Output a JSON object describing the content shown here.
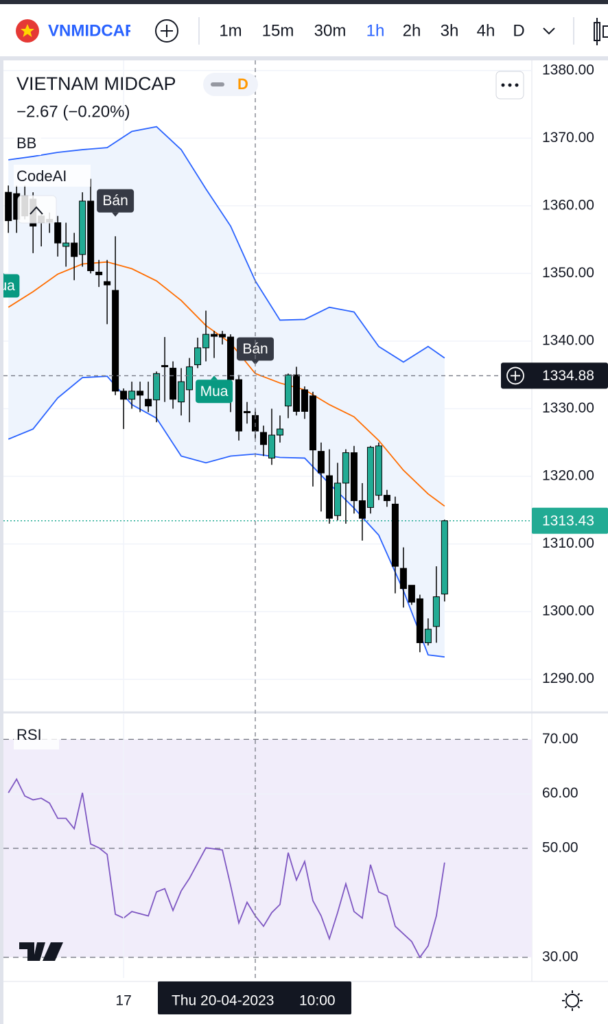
{
  "toolbar": {
    "symbol": "VNMIDCAP",
    "intervals": [
      "1m",
      "15m",
      "30m",
      "1h",
      "2h",
      "3h",
      "4h",
      "D"
    ],
    "active_interval": 3
  },
  "chart_data": [
    {
      "type": "candlestick",
      "title": "VIETNAM MIDCAP",
      "interval": "D",
      "change": "−2.67 (−0.20%)",
      "indicators": [
        "BB",
        "CodeAI"
      ],
      "x": [
        0,
        1,
        2,
        3,
        4,
        5,
        6,
        7,
        8,
        9,
        10,
        11,
        12,
        13,
        14,
        15,
        16,
        17,
        18,
        19,
        20,
        21,
        22,
        23,
        24,
        25,
        26,
        27,
        28,
        29,
        30,
        31,
        32,
        33,
        34,
        35,
        36,
        37,
        38,
        39,
        40,
        41,
        42,
        43,
        44,
        45,
        46,
        47,
        48,
        49,
        50,
        51,
        52,
        53
      ],
      "open": [
        1362,
        1361.8,
        1361.5,
        1361,
        1358.5,
        1358,
        1357.5,
        1354,
        1354.5,
        1352.8,
        1360.7,
        1350.2,
        1348.8,
        1347.5,
        1332.6,
        1331.4,
        1332.6,
        1331.4,
        1331.3,
        1336.4,
        1336,
        1331,
        1332.8,
        1336.5,
        1339,
        1341,
        1341,
        1340.6,
        1334.3,
        1329.6,
        1329,
        1326.5,
        1322.7,
        1326.1,
        1330.4,
        1335,
        1332.8,
        1331.9,
        1323.7,
        1320.1,
        1314.2,
        1319,
        1323.5,
        1316.4,
        1315.4,
        1317.2,
        1317.2,
        1315.9,
        1306.4,
        1303.9,
        1301.9,
        1295.4,
        1297.8,
        1302.6
      ],
      "high": [
        1363,
        1363,
        1363,
        1362,
        1359,
        1359,
        1358.5,
        1357.5,
        1356,
        1362,
        1364,
        1352,
        1352,
        1355.5,
        1333,
        1334,
        1334,
        1334,
        1335.5,
        1340.6,
        1337,
        1336,
        1337.5,
        1340.5,
        1344.5,
        1341.5,
        1341.5,
        1341,
        1335,
        1331,
        1330,
        1327.5,
        1330,
        1329,
        1335.2,
        1336.2,
        1333.3,
        1332.5,
        1325,
        1324,
        1322,
        1324,
        1324.5,
        1319,
        1324.5,
        1325,
        1318,
        1317,
        1309.5,
        1303.9,
        1302.5,
        1299,
        1306.7,
        1313.6
      ],
      "low": [
        1356,
        1356,
        1358,
        1353,
        1354,
        1356,
        1352.5,
        1351,
        1349,
        1351,
        1350,
        1348,
        1342.5,
        1332,
        1327,
        1330,
        1329.5,
        1329.5,
        1328,
        1331,
        1330,
        1329,
        1328,
        1336,
        1337,
        1337.5,
        1339.5,
        1329.5,
        1325.3,
        1327.8,
        1325.5,
        1323,
        1321.7,
        1325,
        1328.6,
        1329,
        1328.5,
        1318.5,
        1314.8,
        1313,
        1313.5,
        1313,
        1314.5,
        1310.5,
        1314.5,
        1316.5,
        1315.5,
        1302.7,
        1300.6,
        1301,
        1294,
        1295,
        1295.4,
        1301.5
      ],
      "close": [
        1357.8,
        1358,
        1358.5,
        1357,
        1357.5,
        1357.6,
        1354.5,
        1354.5,
        1352.5,
        1360.7,
        1350.4,
        1349.8,
        1348.3,
        1332.6,
        1331.4,
        1332.6,
        1332,
        1330.4,
        1335.2,
        1336.2,
        1331.4,
        1334,
        1336.2,
        1339,
        1341,
        1340.7,
        1340.6,
        1334.3,
        1326.7,
        1329.4,
        1326.7,
        1324.7,
        1326.1,
        1327,
        1335,
        1329.6,
        1329.6,
        1323.9,
        1320.5,
        1313.8,
        1319,
        1323.5,
        1316.4,
        1313.8,
        1324.3,
        1324.5,
        1316.4,
        1306.7,
        1303.4,
        1301.4,
        1295.4,
        1297.4,
        1302.2,
        1313.43
      ],
      "up_color": "#22ab94",
      "down_color": "#000000",
      "bands": {
        "x": [
          0,
          3,
          6,
          9,
          12,
          15,
          18,
          21,
          24,
          27,
          30,
          33,
          36,
          39,
          42,
          45,
          48,
          51,
          53
        ],
        "fill": "#eef4fd",
        "series": [
          {
            "color": "#2962ff",
            "values": [
              1366.8,
              1367.3,
              1367.9,
              1368.3,
              1368.6,
              1371.0,
              1371.7,
              1368.3,
              1362.5,
              1357.0,
              1348.9,
              1343.1,
              1343.2,
              1345.0,
              1344.3,
              1339.2,
              1336.9,
              1339.2,
              1337.5
            ]
          },
          {
            "color": "#ff6d00",
            "values": [
              1345.0,
              1347.3,
              1349.9,
              1351.4,
              1351.7,
              1350.7,
              1348.9,
              1346.0,
              1342.3,
              1339.7,
              1335.2,
              1333.8,
              1332.8,
              1330.6,
              1328.8,
              1325.3,
              1320.9,
              1317.4,
              1315.6
            ]
          },
          {
            "color": "#2962ff",
            "values": [
              1325.5,
              1327.0,
              1331.6,
              1334.6,
              1334.8,
              1330.6,
              1328.6,
              1323.0,
              1322.0,
              1323.0,
              1323.3,
              1322.8,
              1322.7,
              1318.9,
              1315.3,
              1311.3,
              1303.1,
              1293.6,
              1293.3
            ]
          }
        ]
      },
      "signals": [
        {
          "label": "Bán",
          "x": 13,
          "y": 1358.4,
          "color": "#363a45"
        },
        {
          "label": "Bán",
          "x": 30,
          "y": 1336.5,
          "color": "#363a45"
        },
        {
          "label": "Mua",
          "x": 25,
          "y": 1334.9,
          "color": "#089981"
        },
        {
          "label": "Mua",
          "x": -0.9,
          "y": 1350.5,
          "color": "#089981"
        }
      ],
      "xlim": [
        -0.6,
        63.6
      ],
      "ylim": [
        1285.2,
        1381.5
      ],
      "yticks": [
        {
          "value": 1290,
          "label": "1290.00"
        },
        {
          "value": 1300,
          "label": "1300.00"
        },
        {
          "value": 1310,
          "label": "1310.00"
        },
        {
          "value": 1320,
          "label": "1320.00"
        },
        {
          "value": 1330,
          "label": "1330.00"
        },
        {
          "value": 1340,
          "label": "1340.00"
        },
        {
          "value": 1350,
          "label": "1350.00"
        },
        {
          "value": 1360,
          "label": "1360.00"
        },
        {
          "value": 1370,
          "label": "1370.00"
        },
        {
          "value": 1380,
          "label": "1380.00"
        }
      ],
      "xticks": [
        {
          "value": 14,
          "label": "17"
        }
      ],
      "grid": true,
      "last_price": 1313.43,
      "last_color": "#22ab94",
      "crosshair": {
        "x": 30,
        "date": "Thu 20-04-2023",
        "time": "10:00",
        "price": 1334.88
      }
    },
    {
      "type": "line",
      "title": "RSI",
      "x": [
        0,
        1,
        2,
        3,
        4,
        5,
        6,
        7,
        8,
        9,
        10,
        11,
        12,
        13,
        14,
        15,
        17,
        18,
        19,
        20,
        21,
        22,
        24,
        26,
        27,
        28,
        29,
        30,
        31,
        32,
        33,
        34,
        35,
        36,
        37,
        38,
        39,
        40,
        41,
        42,
        43,
        44,
        45,
        46,
        47,
        49,
        50,
        51,
        52,
        53
      ],
      "values": [
        60.2,
        62.7,
        59.6,
        58.9,
        59.2,
        58.3,
        55.5,
        55.5,
        53.6,
        60.2,
        50.8,
        50.1,
        48.9,
        37.9,
        37.2,
        38.4,
        37.6,
        42.0,
        42.6,
        38.6,
        42.2,
        44.5,
        50.1,
        49.7,
        43.2,
        36.3,
        40.1,
        37.6,
        35.7,
        38.2,
        39.7,
        49.2,
        44.2,
        47.6,
        40.4,
        37.6,
        33.4,
        38.2,
        43.5,
        38.4,
        37.2,
        47.0,
        42.0,
        41.3,
        35.7,
        32.9,
        30.0,
        32.1,
        37.6,
        47.4
      ],
      "color": "#7e57c2",
      "band_color": "#f1edfa",
      "xlim": [
        -0.6,
        63.6
      ],
      "ylim": [
        26.2,
        74.7
      ],
      "yticks": [
        {
          "value": 30,
          "label": "30.00"
        },
        {
          "value": 50,
          "label": "50.00"
        },
        {
          "value": 60,
          "label": "60.00"
        },
        {
          "value": 70,
          "label": "70.00"
        }
      ]
    }
  ]
}
